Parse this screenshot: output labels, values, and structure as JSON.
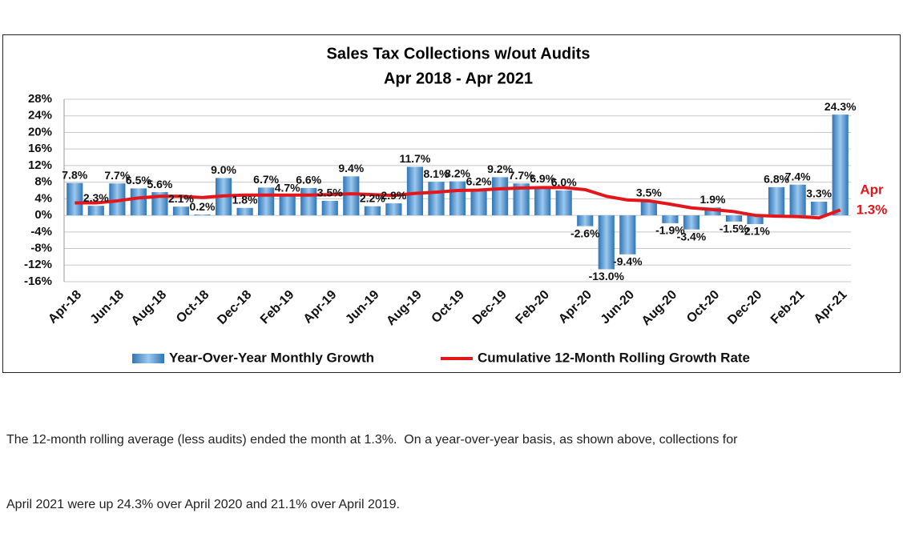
{
  "chart_data": {
    "type": "bar",
    "title": "Sales Tax Collections w/out Audits",
    "subtitle": "Apr 2018 - Apr 2021",
    "categories": [
      "Apr-18",
      null,
      "Jun-18",
      null,
      "Aug-18",
      null,
      "Oct-18",
      null,
      "Dec-18",
      null,
      "Feb-19",
      null,
      "Apr-19",
      null,
      "Jun-19",
      null,
      "Aug-19",
      null,
      "Oct-19",
      null,
      "Dec-19",
      null,
      "Feb-20",
      null,
      "Apr-20",
      null,
      "Jun-20",
      null,
      "Aug-20",
      null,
      "Oct-20",
      null,
      "Dec-20",
      null,
      "Feb-21",
      null,
      "Apr-21"
    ],
    "ylim": [
      -16,
      28
    ],
    "yticks": [
      {
        "value": -16,
        "label": "-16%"
      },
      {
        "value": -12,
        "label": "-12%"
      },
      {
        "value": -8,
        "label": "-8%"
      },
      {
        "value": -4,
        "label": "-4%"
      },
      {
        "value": 0,
        "label": "0%"
      },
      {
        "value": 4,
        "label": "4%"
      },
      {
        "value": 8,
        "label": "8%"
      },
      {
        "value": 12,
        "label": "12%"
      },
      {
        "value": 16,
        "label": "16%"
      },
      {
        "value": 20,
        "label": "20%"
      },
      {
        "value": 24,
        "label": "24%"
      },
      {
        "value": 28,
        "label": "28%"
      }
    ],
    "grid": true,
    "series": [
      {
        "name": "Year-Over-Year Monthly Growth",
        "type": "bar",
        "color": "#2e75b6",
        "values": [
          7.8,
          2.3,
          7.7,
          6.5,
          5.6,
          2.1,
          0.2,
          9.0,
          1.8,
          6.7,
          4.7,
          6.6,
          3.5,
          9.4,
          2.2,
          2.9,
          11.7,
          8.1,
          8.2,
          6.2,
          9.2,
          7.7,
          6.9,
          6.0,
          -2.6,
          -13.0,
          -9.4,
          3.5,
          -1.9,
          -3.4,
          1.9,
          -1.5,
          -2.1,
          6.8,
          7.4,
          3.3,
          24.3
        ],
        "value_labels": [
          "7.8%",
          "2.3%",
          "7.7%",
          "6.5%",
          "5.6%",
          "2.1%",
          "0.2%",
          "9.0%",
          "1.8%",
          "6.7%",
          "4.7%",
          "6.6%",
          "3.5%",
          "9.4%",
          "2.2%",
          "2.9%",
          "11.7%",
          "8.1%",
          "8.2%",
          "6.2%",
          "9.2%",
          "7.7%",
          "6.9%",
          "6.0%",
          "-2.6%",
          "-13.0%",
          "-9.4%",
          "3.5%",
          "-1.9%",
          "-3.4%",
          "1.9%",
          "-1.5%",
          "-2.1%",
          "6.8%",
          "7.4%",
          "3.3%",
          "24.3%"
        ]
      },
      {
        "name": "Cumulative 12-Month Rolling Growth Rate",
        "type": "line",
        "color": "#e3161b",
        "values": [
          3.0,
          3.0,
          3.5,
          4.2,
          4.6,
          4.6,
          4.3,
          4.7,
          4.9,
          4.9,
          4.9,
          4.9,
          5.0,
          5.2,
          5.0,
          4.8,
          5.3,
          5.6,
          6.0,
          6.1,
          6.4,
          6.6,
          6.7,
          6.7,
          6.2,
          4.6,
          3.7,
          3.5,
          2.7,
          1.8,
          1.4,
          0.9,
          0.0,
          -0.2,
          -0.3,
          -0.6,
          1.3
        ]
      }
    ],
    "annotations": [
      "Apr",
      "1.3%"
    ]
  },
  "caption": [
    "The 12-month rolling average (less audits) ended the month at 1.3%.  On a year-over-year basis, as shown above, collections for",
    "April 2021 were up 24.3% over April 2020 and 21.1% over April 2019."
  ]
}
